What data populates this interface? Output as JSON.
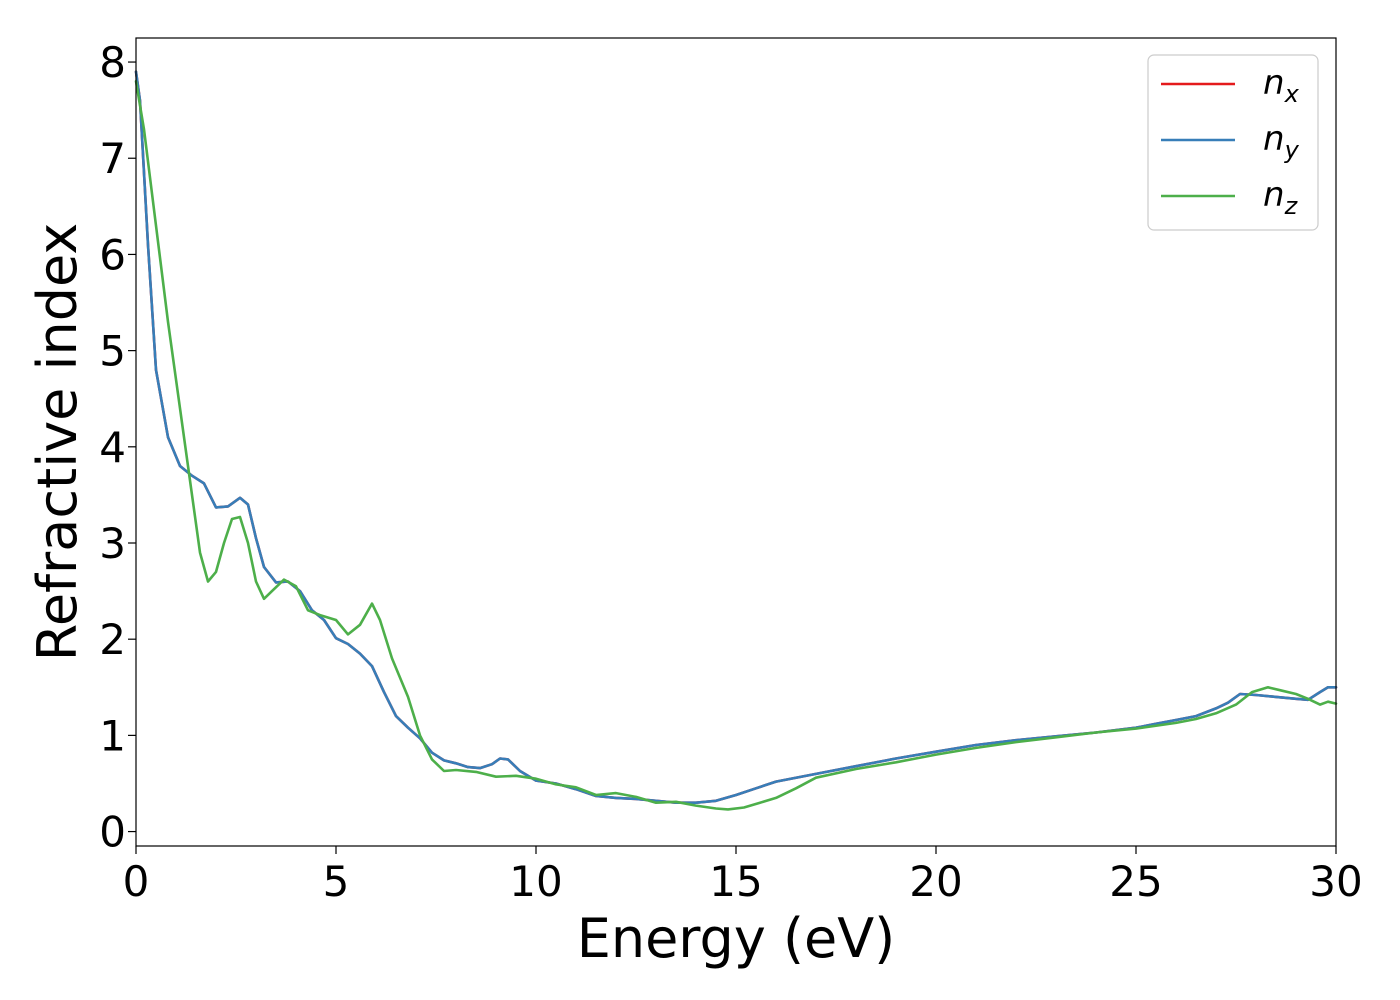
{
  "chart_data": {
    "type": "line",
    "xlabel": "Energy (eV)",
    "ylabel": "Refractive index",
    "xlim": [
      0,
      30
    ],
    "ylim": [
      -0.15,
      8.25
    ],
    "xticks": [
      0,
      5,
      10,
      15,
      20,
      25,
      30
    ],
    "yticks": [
      0,
      1,
      2,
      3,
      4,
      5,
      6,
      7,
      8
    ],
    "grid": false,
    "legend_position": "top-right",
    "series": [
      {
        "name": "n",
        "subscript": "x",
        "color": "#e41a1c",
        "x": [
          0,
          0.1,
          0.3,
          0.5,
          0.8,
          1.1,
          1.4,
          1.7,
          2.0,
          2.3,
          2.6,
          2.8,
          3.0,
          3.2,
          3.5,
          3.8,
          4.1,
          4.4,
          4.7,
          5.0,
          5.3,
          5.6,
          5.9,
          6.2,
          6.5,
          6.8,
          7.1,
          7.4,
          7.7,
          8.0,
          8.3,
          8.6,
          8.9,
          9.1,
          9.3,
          9.6,
          10.0,
          10.5,
          11.0,
          11.5,
          12.0,
          12.5,
          13.0,
          13.5,
          14.0,
          14.5,
          15.0,
          15.5,
          16.0,
          17.0,
          18.0,
          19.0,
          20.0,
          21.0,
          22.0,
          23.0,
          24.0,
          25.0,
          25.5,
          26.0,
          26.5,
          27.0,
          27.3,
          27.6,
          28.0,
          28.5,
          29.0,
          29.3,
          29.6,
          29.8,
          30.0
        ],
        "values": [
          7.9,
          7.6,
          6.1,
          4.8,
          4.1,
          3.8,
          3.7,
          3.62,
          3.37,
          3.38,
          3.47,
          3.4,
          3.05,
          2.75,
          2.59,
          2.6,
          2.5,
          2.3,
          2.2,
          2.01,
          1.95,
          1.85,
          1.72,
          1.45,
          1.2,
          1.08,
          0.97,
          0.82,
          0.74,
          0.71,
          0.67,
          0.66,
          0.7,
          0.76,
          0.75,
          0.63,
          0.53,
          0.5,
          0.44,
          0.37,
          0.35,
          0.34,
          0.32,
          0.3,
          0.3,
          0.32,
          0.38,
          0.45,
          0.52,
          0.6,
          0.68,
          0.76,
          0.83,
          0.9,
          0.95,
          0.99,
          1.03,
          1.08,
          1.12,
          1.16,
          1.2,
          1.28,
          1.34,
          1.43,
          1.42,
          1.4,
          1.38,
          1.37,
          1.45,
          1.5,
          1.5
        ]
      },
      {
        "name": "n",
        "subscript": "y",
        "color": "#377eb8",
        "x": [
          0,
          0.1,
          0.3,
          0.5,
          0.8,
          1.1,
          1.4,
          1.7,
          2.0,
          2.3,
          2.6,
          2.8,
          3.0,
          3.2,
          3.5,
          3.8,
          4.1,
          4.4,
          4.7,
          5.0,
          5.3,
          5.6,
          5.9,
          6.2,
          6.5,
          6.8,
          7.1,
          7.4,
          7.7,
          8.0,
          8.3,
          8.6,
          8.9,
          9.1,
          9.3,
          9.6,
          10.0,
          10.5,
          11.0,
          11.5,
          12.0,
          12.5,
          13.0,
          13.5,
          14.0,
          14.5,
          15.0,
          15.5,
          16.0,
          17.0,
          18.0,
          19.0,
          20.0,
          21.0,
          22.0,
          23.0,
          24.0,
          25.0,
          25.5,
          26.0,
          26.5,
          27.0,
          27.3,
          27.6,
          28.0,
          28.5,
          29.0,
          29.3,
          29.6,
          29.8,
          30.0
        ],
        "values": [
          7.9,
          7.6,
          6.1,
          4.8,
          4.1,
          3.8,
          3.7,
          3.62,
          3.37,
          3.38,
          3.47,
          3.4,
          3.05,
          2.75,
          2.59,
          2.6,
          2.5,
          2.3,
          2.2,
          2.01,
          1.95,
          1.85,
          1.72,
          1.45,
          1.2,
          1.08,
          0.97,
          0.82,
          0.74,
          0.71,
          0.67,
          0.66,
          0.7,
          0.76,
          0.75,
          0.63,
          0.53,
          0.5,
          0.44,
          0.37,
          0.35,
          0.34,
          0.32,
          0.3,
          0.3,
          0.32,
          0.38,
          0.45,
          0.52,
          0.6,
          0.68,
          0.76,
          0.83,
          0.9,
          0.95,
          0.99,
          1.03,
          1.08,
          1.12,
          1.16,
          1.2,
          1.28,
          1.34,
          1.43,
          1.42,
          1.4,
          1.38,
          1.37,
          1.45,
          1.5,
          1.5
        ]
      },
      {
        "name": "n",
        "subscript": "z",
        "color": "#4daf4a",
        "x": [
          0,
          0.2,
          0.5,
          0.8,
          1.1,
          1.4,
          1.6,
          1.8,
          2.0,
          2.2,
          2.4,
          2.6,
          2.8,
          3.0,
          3.2,
          3.4,
          3.7,
          4.0,
          4.3,
          4.6,
          5.0,
          5.3,
          5.6,
          5.9,
          6.1,
          6.4,
          6.8,
          7.1,
          7.4,
          7.7,
          8.0,
          8.5,
          9.0,
          9.5,
          10.0,
          10.5,
          11.0,
          11.5,
          12.0,
          12.5,
          13.0,
          13.5,
          14.0,
          14.5,
          14.8,
          15.2,
          15.6,
          16.0,
          16.5,
          17.0,
          18.0,
          19.0,
          20.0,
          21.0,
          22.0,
          23.0,
          24.0,
          25.0,
          26.0,
          26.5,
          27.0,
          27.5,
          27.9,
          28.3,
          28.6,
          29.0,
          29.3,
          29.6,
          29.8,
          30.0
        ],
        "values": [
          7.8,
          7.3,
          6.3,
          5.3,
          4.4,
          3.5,
          2.9,
          2.6,
          2.7,
          3.0,
          3.25,
          3.27,
          3.0,
          2.6,
          2.42,
          2.5,
          2.62,
          2.55,
          2.3,
          2.25,
          2.2,
          2.05,
          2.15,
          2.37,
          2.2,
          1.8,
          1.4,
          1.0,
          0.75,
          0.63,
          0.64,
          0.62,
          0.57,
          0.58,
          0.55,
          0.49,
          0.46,
          0.38,
          0.4,
          0.36,
          0.3,
          0.31,
          0.27,
          0.24,
          0.23,
          0.25,
          0.3,
          0.35,
          0.45,
          0.56,
          0.65,
          0.72,
          0.8,
          0.87,
          0.93,
          0.98,
          1.03,
          1.07,
          1.13,
          1.17,
          1.23,
          1.32,
          1.45,
          1.5,
          1.47,
          1.43,
          1.38,
          1.32,
          1.35,
          1.33
        ]
      }
    ]
  }
}
